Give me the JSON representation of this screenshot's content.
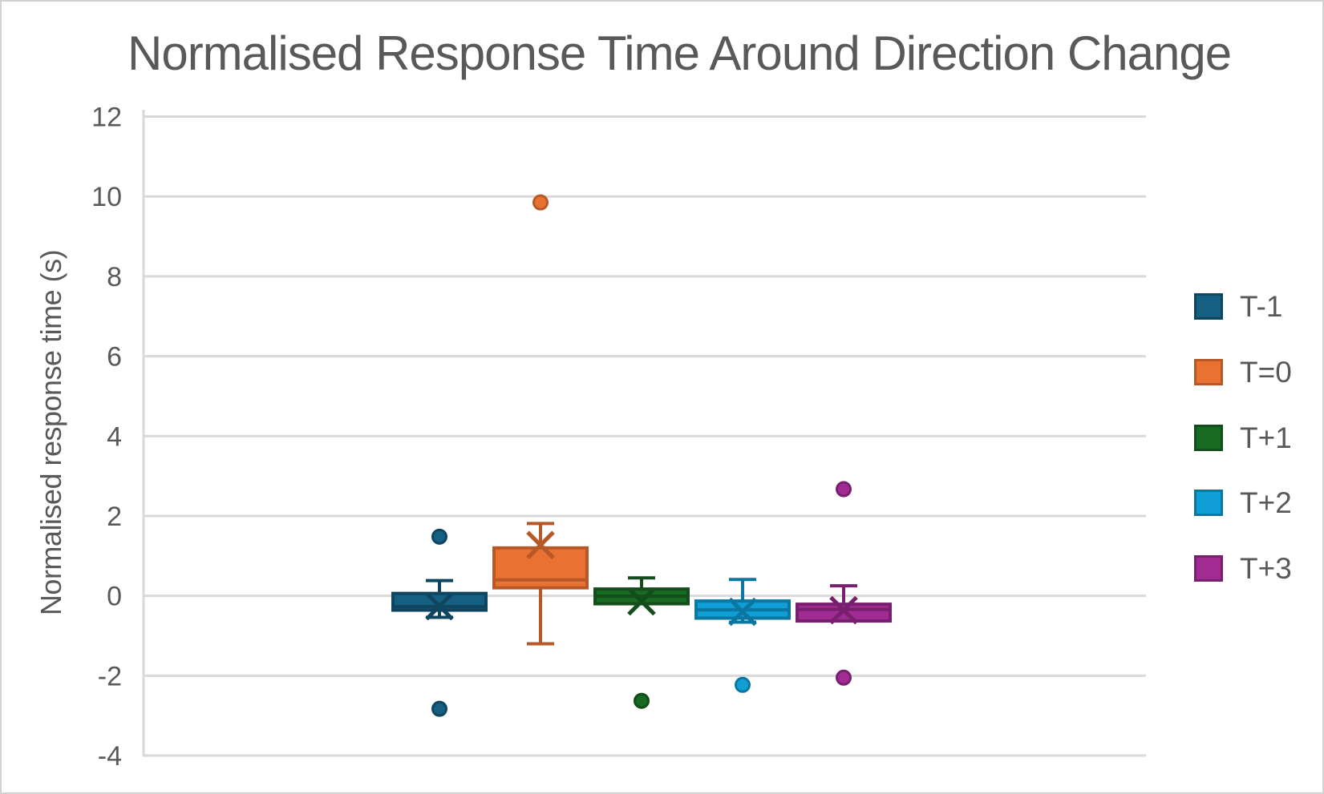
{
  "window": {
    "background": "#ffffff",
    "frame_border_color": "#d2d2d2"
  },
  "chart_data": {
    "type": "boxplot",
    "title": "Normalised Response Time Around Direction Change",
    "xlabel": "",
    "ylabel": "Normalised response time (s)",
    "ylim": [
      -4,
      12
    ],
    "yticks": [
      12,
      10,
      8,
      6,
      4,
      2,
      0,
      -2,
      -4
    ],
    "grid": true,
    "legend_position": "right",
    "colors": {
      "text": "#595959",
      "gridline": "#d9d9d9",
      "axis_line": "#d9d9d9"
    },
    "series": [
      {
        "name": "T-1",
        "color": "#156082",
        "border_color": "#0f455e",
        "q1": -0.36,
        "median": -0.27,
        "q3": 0.06,
        "whisker_low": -0.54,
        "whisker_high": 0.38,
        "mean": -0.26,
        "outliers": [
          1.48,
          -2.83
        ]
      },
      {
        "name": "T=0",
        "color": "#e97132",
        "border_color": "#b65827",
        "q1": 0.2,
        "median": 0.4,
        "q3": 1.2,
        "whisker_low": -1.2,
        "whisker_high": 1.81,
        "mean": 1.27,
        "outliers": [
          9.85
        ]
      },
      {
        "name": "T+1",
        "color": "#196b24",
        "border_color": "#124d1a",
        "q1": -0.2,
        "median": -0.01,
        "q3": 0.17,
        "whisker_low": null,
        "whisker_high": 0.45,
        "mean": -0.14,
        "outliers": [
          -2.63
        ]
      },
      {
        "name": "T+2",
        "color": "#0f9ed5",
        "border_color": "#0b77a0",
        "q1": -0.56,
        "median": -0.35,
        "q3": -0.13,
        "whisker_low": -0.66,
        "whisker_high": 0.41,
        "mean": -0.4,
        "outliers": [
          -2.23
        ]
      },
      {
        "name": "T+3",
        "color": "#a02b93",
        "border_color": "#78206e",
        "q1": -0.63,
        "median": -0.34,
        "q3": -0.21,
        "whisker_low": null,
        "whisker_high": 0.25,
        "mean": -0.36,
        "outliers": [
          2.67,
          -2.05
        ]
      }
    ]
  }
}
